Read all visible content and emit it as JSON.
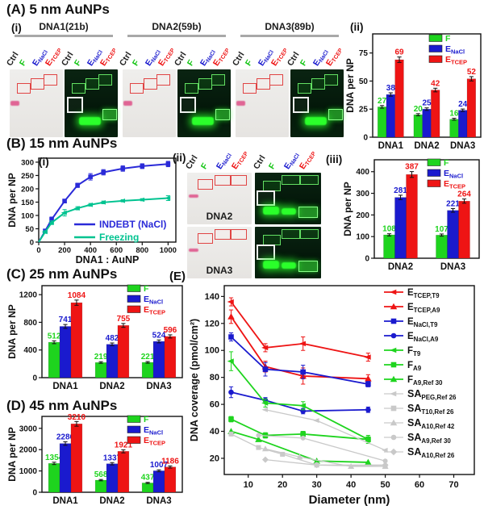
{
  "figure": {
    "panels": {
      "A": {
        "title": "(A) 5 nm AuNPs",
        "label_i": "(i)",
        "label_ii": "(ii)",
        "gel_groups": [
          "DNA1(21b)",
          "DNA2(59b)",
          "DNA3(89b)"
        ]
      },
      "B": {
        "title": "(B) 15 nm AuNPs",
        "label_i": "(i)",
        "label_ii": "(ii)",
        "label_iii": "(iii)",
        "gel_rows": [
          "DNA2",
          "DNA3"
        ]
      },
      "C": {
        "title": "(C) 25 nm AuNPs"
      },
      "D": {
        "title": "(D) 45 nm AuNPs"
      },
      "E": {
        "label": "(E)"
      }
    },
    "lane_labels": [
      {
        "main": "Ctrl",
        "sub": "",
        "color": "#222222"
      },
      {
        "main": "F",
        "sub": "",
        "color": "#15c515"
      },
      {
        "main": "E",
        "sub": "NaCl",
        "color": "#1a1ace"
      },
      {
        "main": "E",
        "sub": "TCEP",
        "color": "#ee1414"
      }
    ]
  },
  "colors": {
    "green": "#1ed41e",
    "blue": "#1a1ace",
    "red": "#ee1414",
    "teal": "#00c390",
    "blue_line": "#2a2ad8",
    "gray": "#c9c9c9",
    "axis": "#111111",
    "gel_light_bg": "#ecebe8",
    "gel_dark_bg": "#07230e",
    "band_green": "#2bff2b",
    "band_pink": "#e06595",
    "box_red": "#e04444",
    "box_green": "#63e063",
    "box_white": "#f2f2f2"
  },
  "chart_data": [
    {
      "id": "chart-a2",
      "type": "bar",
      "ylabel": "DNA per NP",
      "categories": [
        "DNA1",
        "DNA2",
        "DNA3"
      ],
      "yticks": [
        0,
        25,
        50,
        75
      ],
      "ylim": [
        0,
        92
      ],
      "series": [
        {
          "label": {
            "main": "F",
            "sub": ""
          },
          "color_key": "green",
          "values": [
            27,
            20,
            16
          ]
        },
        {
          "label": {
            "main": "E",
            "sub": "NaCl"
          },
          "color_key": "blue",
          "values": [
            38,
            25,
            24
          ]
        },
        {
          "label": {
            "main": "E",
            "sub": "TCEP"
          },
          "color_key": "red",
          "values": [
            69,
            42,
            52
          ]
        }
      ]
    },
    {
      "id": "chart-b1",
      "type": "line",
      "xlabel": "DNA1 : AuNP",
      "ylabel": "DNA per NP",
      "xticks": [
        0,
        200,
        400,
        600,
        800,
        1000
      ],
      "yticks": [
        0,
        50,
        100,
        150,
        200,
        250,
        300
      ],
      "xlim": [
        0,
        1060
      ],
      "ylim": [
        0,
        315
      ],
      "from_origin": true,
      "series": [
        {
          "label": "INDEBT (NaCl)",
          "color_key": "blue_line",
          "marker": "square",
          "x": [
            50,
            100,
            200,
            300,
            400,
            500,
            650,
            800,
            1000
          ],
          "y": [
            42,
            85,
            154,
            213,
            245,
            262,
            276,
            285,
            293
          ],
          "err": [
            6,
            9,
            7,
            8,
            12,
            10,
            10,
            9,
            10
          ]
        },
        {
          "label": "Freezing",
          "color_key": "teal",
          "marker": "tri-left",
          "x": [
            50,
            100,
            200,
            300,
            400,
            500,
            650,
            800,
            1000
          ],
          "y": [
            38,
            73,
            110,
            127,
            140,
            149,
            155,
            159,
            165
          ],
          "err": [
            5,
            7,
            12,
            6,
            5,
            5,
            4,
            4,
            9
          ]
        }
      ]
    },
    {
      "id": "chart-b3",
      "type": "bar",
      "ylabel": "DNA per NP",
      "categories": [
        "DNA2",
        "DNA3"
      ],
      "yticks": [
        0,
        100,
        200,
        300,
        400
      ],
      "ylim": [
        0,
        455
      ],
      "series": [
        {
          "label": {
            "main": "F",
            "sub": ""
          },
          "color_key": "green",
          "values": [
            108,
            107
          ]
        },
        {
          "label": {
            "main": "E",
            "sub": "NaCl"
          },
          "color_key": "blue",
          "values": [
            281,
            221
          ]
        },
        {
          "label": {
            "main": "E",
            "sub": "TCEP"
          },
          "color_key": "red",
          "values": [
            387,
            264
          ]
        }
      ]
    },
    {
      "id": "chart-c",
      "type": "bar",
      "ylabel": "DNA per NP",
      "categories": [
        "DNA1",
        "DNA2",
        "DNA3"
      ],
      "yticks": [
        0,
        400,
        800,
        1200
      ],
      "ylim": [
        0,
        1330
      ],
      "series": [
        {
          "label": {
            "main": "F",
            "sub": ""
          },
          "color_key": "green",
          "values": [
            512,
            219,
            221
          ]
        },
        {
          "label": {
            "main": "E",
            "sub": "NaCl"
          },
          "color_key": "blue",
          "values": [
            741,
            482,
            524
          ]
        },
        {
          "label": {
            "main": "E",
            "sub": "TCEP"
          },
          "color_key": "red",
          "values": [
            1084,
            755,
            596
          ]
        }
      ]
    },
    {
      "id": "chart-d",
      "type": "bar",
      "ylabel": "DNA per NP",
      "categories": [
        "DNA1",
        "DNA2",
        "DNA3"
      ],
      "yticks": [
        0,
        1000,
        2000,
        3000
      ],
      "ylim": [
        0,
        3560
      ],
      "series": [
        {
          "label": {
            "main": "F",
            "sub": ""
          },
          "color_key": "green",
          "values": [
            1354,
            568,
            437
          ]
        },
        {
          "label": {
            "main": "E",
            "sub": "NaCl"
          },
          "color_key": "blue",
          "values": [
            2286,
            1337,
            1007
          ]
        },
        {
          "label": {
            "main": "E",
            "sub": "TCEP"
          },
          "color_key": "red",
          "values": [
            3210,
            1921,
            1186
          ]
        }
      ]
    },
    {
      "id": "chart-e",
      "type": "scatter",
      "xlabel": "Diameter (nm)",
      "ylabel": "DNA coverage (pmol/cm²)",
      "xticks": [
        10,
        20,
        30,
        40,
        50,
        60,
        70
      ],
      "yticks": [
        20,
        40,
        60,
        80,
        100,
        120,
        140
      ],
      "xlim": [
        3,
        76
      ],
      "ylim": [
        8,
        148
      ],
      "series": [
        {
          "label": {
            "main": "E",
            "sub": "TCEP,T9"
          },
          "color_key": "red",
          "marker": "tri-left",
          "x": [
            5,
            15,
            26,
            45
          ],
          "y": [
            136,
            102,
            105,
            95
          ],
          "err": [
            3,
            3,
            5,
            3
          ]
        },
        {
          "label": {
            "main": "E",
            "sub": "TCEP,A9"
          },
          "color_key": "red",
          "marker": "tri-up",
          "x": [
            5,
            15,
            26,
            45
          ],
          "y": [
            125,
            88,
            81,
            79
          ],
          "err": [
            5,
            4,
            6,
            3
          ]
        },
        {
          "label": {
            "main": "E",
            "sub": "NaCl,T9"
          },
          "color_key": "blue",
          "marker": "square",
          "x": [
            5,
            15,
            26,
            45
          ],
          "y": [
            110,
            86,
            84,
            75
          ],
          "err": [
            3,
            5,
            5,
            2
          ]
        },
        {
          "label": {
            "main": "E",
            "sub": "NaCl,A9"
          },
          "color_key": "blue",
          "marker": "circle",
          "x": [
            5,
            15,
            26,
            45
          ],
          "y": [
            69,
            63,
            55,
            56
          ],
          "err": [
            4,
            2,
            2,
            2
          ]
        },
        {
          "label": {
            "main": "F",
            "sub": "T9"
          },
          "color_key": "green",
          "marker": "tri-left",
          "x": [
            5,
            15,
            26,
            45
          ],
          "y": [
            92,
            61,
            59,
            34
          ],
          "err": [
            7,
            3,
            3,
            3
          ]
        },
        {
          "label": {
            "main": "F",
            "sub": "A9"
          },
          "color_key": "green",
          "marker": "square",
          "x": [
            5,
            15,
            26,
            45
          ],
          "y": [
            49,
            37,
            38,
            34
          ],
          "err": [
            2,
            2,
            2,
            2
          ]
        },
        {
          "label": {
            "main": "F",
            "sub": "A9,Ref 30"
          },
          "color_key": "green",
          "marker": "tri-up",
          "x": [
            5,
            13,
            30,
            45
          ],
          "y": [
            40,
            34,
            18,
            17
          ]
        },
        {
          "label": {
            "main": "SA",
            "sub": "PEG,Ref 26"
          },
          "color_key": "gray",
          "marker": "tri-left",
          "x": [
            15,
            30,
            50
          ],
          "y": [
            56,
            48,
            26
          ]
        },
        {
          "label": {
            "main": "SA",
            "sub": "T10,Ref 26"
          },
          "color_key": "gray",
          "marker": "square",
          "x": [
            5,
            13,
            20,
            30,
            50
          ],
          "y": [
            38,
            28,
            23,
            15,
            14
          ]
        },
        {
          "label": {
            "main": "SA",
            "sub": "A10,Ref 42"
          },
          "color_key": "gray",
          "marker": "tri-up",
          "x": [
            15,
            25,
            40,
            50
          ],
          "y": [
            27,
            21,
            14,
            14
          ]
        },
        {
          "label": {
            "main": "SA",
            "sub": "A9,Ref 30"
          },
          "color_key": "gray",
          "marker": "circle",
          "x": [
            13,
            26,
            50
          ],
          "y": [
            37,
            35,
            18
          ]
        },
        {
          "label": {
            "main": "SA",
            "sub": "A10,Ref 26"
          },
          "color_key": "gray",
          "marker": "diamond",
          "x": [
            15,
            30,
            50
          ],
          "y": [
            19,
            15,
            15
          ]
        }
      ]
    }
  ]
}
